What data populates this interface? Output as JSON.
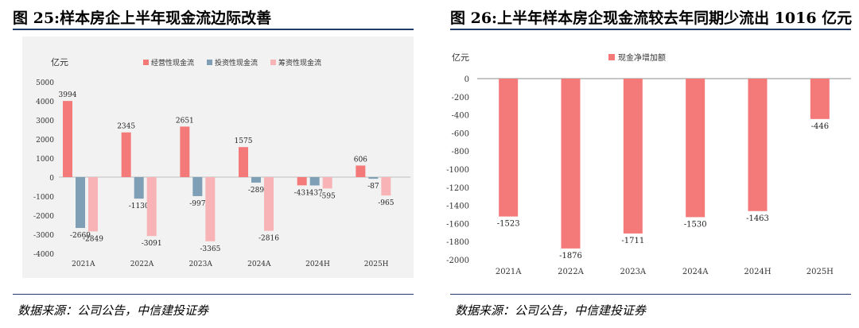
{
  "left": {
    "title": "图 25:样本房企上半年现金流边际改善",
    "source": "数据来源：公司公告，中信建投证券"
  },
  "right": {
    "title": "图 26:上半年样本房企现金流较去年同期少流出 1016 亿元",
    "source": "数据来源：公司公告，中信建投证券"
  },
  "colors": {
    "operating": "#f47a7a",
    "investing": "#7e9fb5",
    "financing": "#f7b3b6",
    "net": "#f47a7a"
  },
  "chart_data": [
    {
      "type": "bar",
      "unit_label": "亿元",
      "categories": [
        "2021A",
        "2022A",
        "2023A",
        "2024A",
        "2024H",
        "2025H"
      ],
      "series": [
        {
          "name": "经营性现金流",
          "values": [
            3994,
            2345,
            2651,
            1575,
            -431,
            606
          ]
        },
        {
          "name": "投资性现金流",
          "values": [
            -2669,
            -1130,
            -997,
            -289,
            -437,
            -87
          ]
        },
        {
          "name": "筹资性现金流",
          "values": [
            -2849,
            -3091,
            -3365,
            -2816,
            -595,
            -965
          ]
        }
      ],
      "ylim": [
        -4000,
        5000
      ],
      "yticks": [
        -4000,
        -3000,
        -2000,
        -1000,
        0,
        1000,
        2000,
        3000,
        4000,
        5000
      ],
      "legend_position": "top"
    },
    {
      "type": "bar",
      "unit_label": "亿元",
      "categories": [
        "2021A",
        "2022A",
        "2023A",
        "2024A",
        "2024H",
        "2025H"
      ],
      "series": [
        {
          "name": "现金净增加额",
          "values": [
            -1523,
            -1876,
            -1711,
            -1530,
            -1463,
            -446
          ]
        }
      ],
      "ylim": [
        -2000,
        0
      ],
      "yticks": [
        -2000,
        -1800,
        -1600,
        -1400,
        -1200,
        -1000,
        -800,
        -600,
        -400,
        -200,
        0
      ],
      "legend_position": "top"
    }
  ]
}
